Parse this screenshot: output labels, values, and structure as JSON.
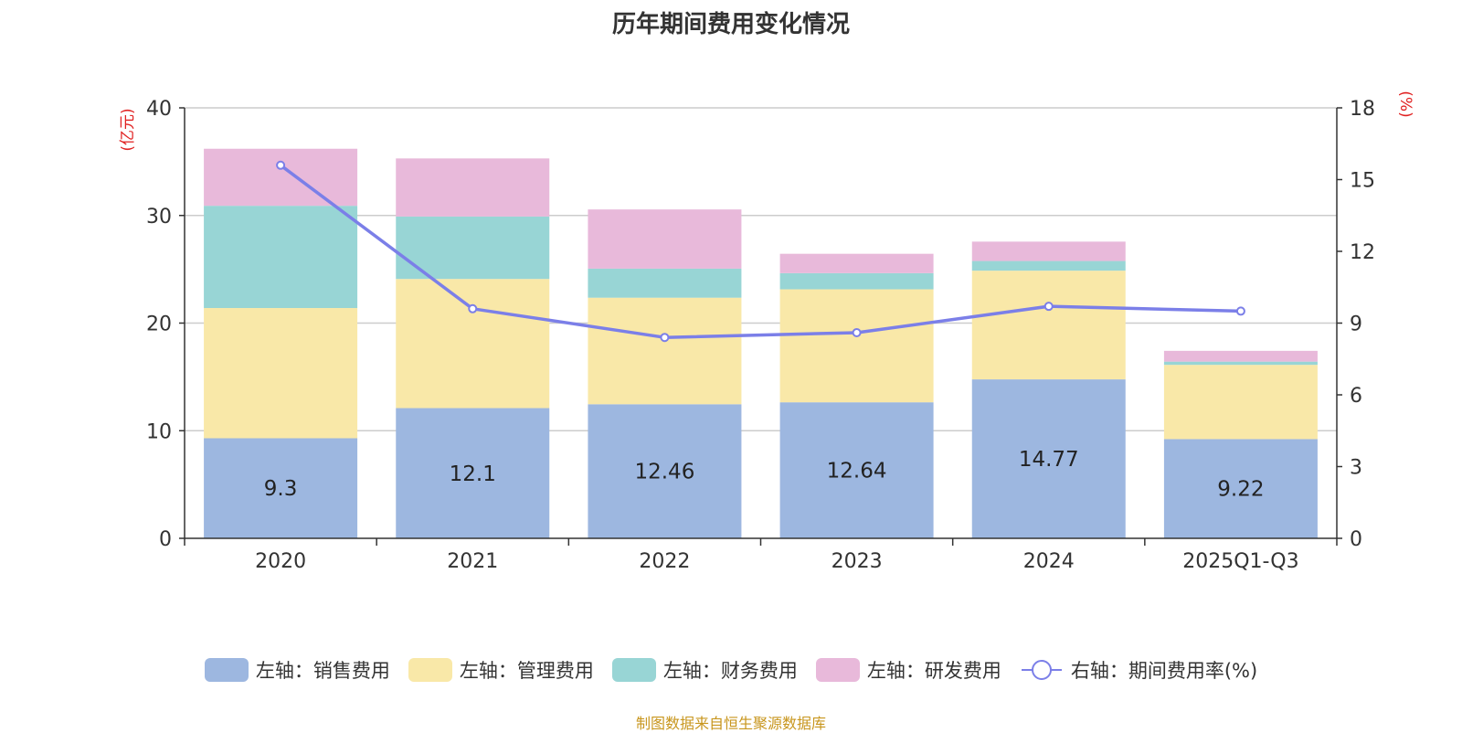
{
  "chart_data": {
    "type": "bar",
    "stacked": true,
    "title": "历年期间费用变化情况",
    "categories": [
      "2020",
      "2021",
      "2022",
      "2023",
      "2024",
      "2025Q1-Q3"
    ],
    "y_left": {
      "label": "(亿元)",
      "min": 0,
      "max": 40,
      "ticks": [
        0,
        10,
        20,
        30,
        40
      ]
    },
    "y_right": {
      "label": "(%)",
      "min": 0,
      "max": 18,
      "ticks": [
        0,
        3,
        6,
        9,
        12,
        15,
        18
      ]
    },
    "series": [
      {
        "name": "左轴：销售费用",
        "axis": "left",
        "color": "#9db7e0",
        "values": [
          9.3,
          12.1,
          12.46,
          12.64,
          14.77,
          9.22
        ],
        "show_labels": true
      },
      {
        "name": "左轴：管理费用",
        "axis": "left",
        "color": "#f9e8a8",
        "values": [
          12.1,
          12.0,
          9.9,
          10.5,
          10.1,
          6.9
        ]
      },
      {
        "name": "左轴：财务费用",
        "axis": "left",
        "color": "#98d5d5",
        "values": [
          9.5,
          5.8,
          2.7,
          1.5,
          0.9,
          0.3
        ]
      },
      {
        "name": "左轴：研发费用",
        "axis": "left",
        "color": "#e8b9da",
        "values": [
          5.3,
          5.4,
          5.5,
          1.8,
          1.8,
          1.0
        ]
      }
    ],
    "line_series": {
      "name": "右轴：期间费用率(%)",
      "axis": "right",
      "type": "line",
      "color": "#7b7fe8",
      "values": [
        15.6,
        9.6,
        8.4,
        8.6,
        9.7,
        9.5
      ]
    },
    "legend_position": "bottom",
    "grid": true
  },
  "source_note": "制图数据来自恒生聚源数据库"
}
